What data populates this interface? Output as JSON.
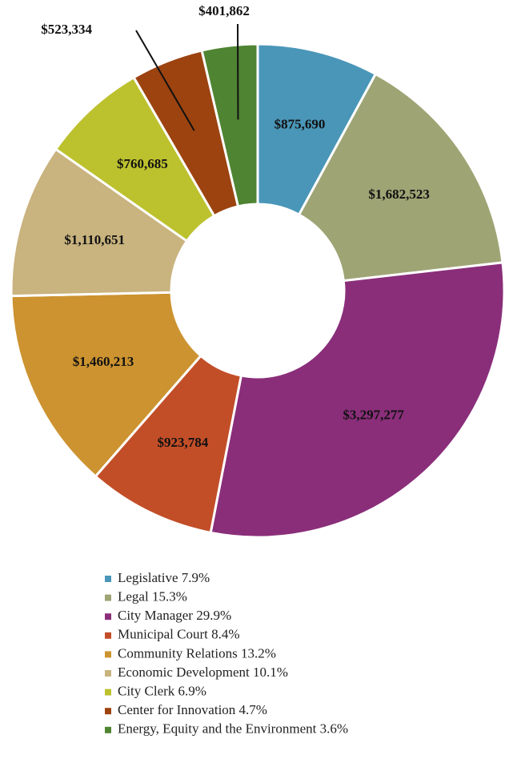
{
  "chart_data": {
    "type": "donut",
    "categories": [
      "Legislative 7.9%",
      "Legal 15.3%",
      "City Manager 29.9%",
      "Municipal Court 8.4%",
      "Community Relations 13.2%",
      "Economic Development 10.1%",
      "City Clerk 6.9%",
      "Center for Innovation 4.7%",
      "Energy, Equity and the Environment 3.6%"
    ],
    "values": [
      875690,
      1682523,
      3297277,
      923784,
      1460213,
      1110651,
      760685,
      523334,
      401862
    ],
    "value_labels": [
      "$875,690",
      "$1,682,523",
      "$3,297,277",
      "$923,784",
      "$1,460,213",
      "$1,110,651",
      "$760,685",
      "$523,334",
      "$401,862"
    ],
    "colors": [
      "#4a96b8",
      "#9ea474",
      "#8a2e7a",
      "#c24e28",
      "#cc9330",
      "#c9b37e",
      "#bcc12e",
      "#9c4310",
      "#4f8432"
    ],
    "legend": "bottom"
  }
}
